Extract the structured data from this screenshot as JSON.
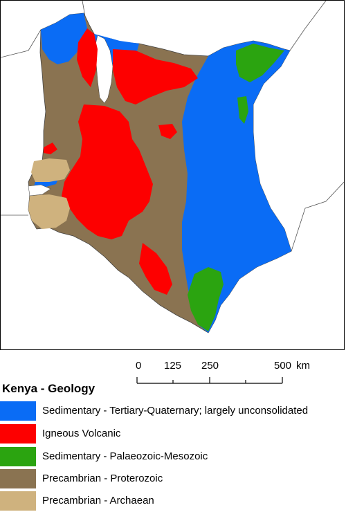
{
  "map": {
    "country": "Kenya",
    "colors": {
      "sedimentary_tq": "#0a6cf5",
      "igneous": "#fd0000",
      "sedimentary_pm": "#2ba410",
      "proterozoic": "#8a7351",
      "archaean": "#cfb27e",
      "neighbor_fill": "#ffffff",
      "water": "#ffffff"
    }
  },
  "scale_bar": {
    "labels": [
      "0",
      "125",
      "250",
      "500"
    ],
    "unit": "km"
  },
  "legend": {
    "title": "Kenya - Geology",
    "items": [
      {
        "label": "Sedimentary - Tertiary-Quaternary; largely unconsolidated",
        "color": "#0a6cf5",
        "icon": "legend-swatch"
      },
      {
        "label": "Igneous Volcanic",
        "color": "#fd0000",
        "icon": "legend-swatch"
      },
      {
        "label": "Sedimentary - Palaeozoic-Mesozoic",
        "color": "#2ba410",
        "icon": "legend-swatch"
      },
      {
        "label": "Precambrian - Proterozoic",
        "color": "#8a7351",
        "icon": "legend-swatch"
      },
      {
        "label": "Precambrian - Archaean",
        "color": "#cfb27e",
        "icon": "legend-swatch"
      }
    ]
  }
}
